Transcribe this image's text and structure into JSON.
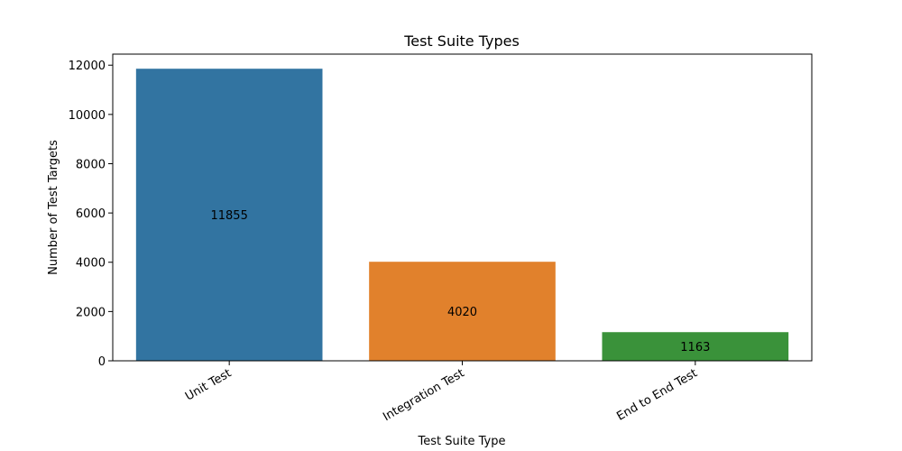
{
  "chart_data": {
    "type": "bar",
    "title": "Test Suite Types",
    "xlabel": "Test Suite Type",
    "ylabel": "Number of Test Targets",
    "categories": [
      "Unit Test",
      "Integration Test",
      "End to End Test"
    ],
    "values": [
      11855,
      4020,
      1163
    ],
    "data_labels": [
      "11855",
      "4020",
      "1163"
    ],
    "colors": [
      "#3274a1",
      "#e1812c",
      "#3a923a"
    ],
    "ylim": [
      0,
      12448
    ],
    "yticks": [
      0,
      2000,
      4000,
      6000,
      8000,
      10000,
      12000
    ],
    "ytick_labels": [
      "0",
      "2000",
      "4000",
      "6000",
      "8000",
      "10000",
      "12000"
    ],
    "grid": false,
    "legend": false
  }
}
